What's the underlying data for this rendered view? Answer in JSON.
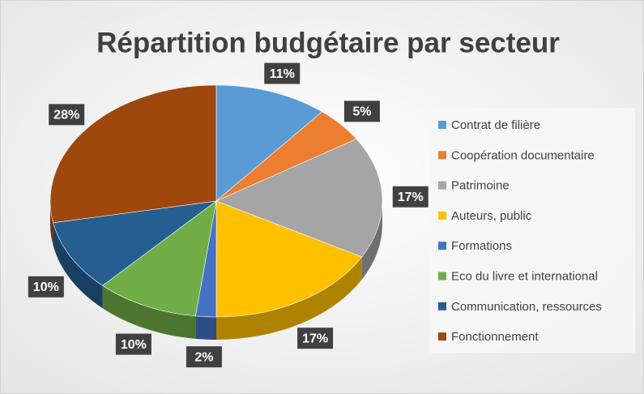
{
  "chart_data": {
    "type": "pie",
    "title": "Répartition budgétaire par secteur",
    "categories": [
      "Contrat de filière",
      "Coopération documentaire",
      "Patrimoine",
      "Auteurs, public",
      "Formations",
      "Eco du livre et international",
      "Communication, ressources",
      "Fonctionnement"
    ],
    "values": [
      11,
      5,
      17,
      17,
      2,
      10,
      10,
      28
    ],
    "value_labels": [
      "11%",
      "5%",
      "17%",
      "17%",
      "2%",
      "10%",
      "10%",
      "28%"
    ],
    "colors": [
      "#5b9bd5",
      "#ed7d31",
      "#a5a5a5",
      "#ffc000",
      "#4472c4",
      "#70ad47",
      "#255e91",
      "#9e480e"
    ],
    "legend": "right"
  }
}
